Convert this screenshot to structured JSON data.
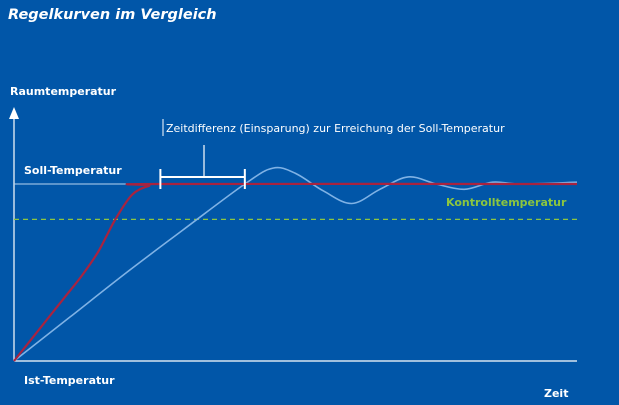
{
  "chart_data": {
    "type": "line",
    "title": "Regelkurven im Vergleich",
    "ylabel": "Raumtemperatur",
    "xlabel": "Zeit",
    "colors": {
      "background": "#0156a8",
      "axis": "#ffffff",
      "fast_curve": "#a9233f",
      "slow_curve": "#7fb2e5",
      "control_line": "#8cc63f",
      "setpoint_line": "#b8d4f0",
      "bracket": "#ffffff"
    },
    "levels": {
      "ist_label": "Ist-Temperatur",
      "soll_label": "Soll-Temperatur",
      "soll": 1.0,
      "kontroll_label": "Kontrolltemperatur",
      "kontroll": 0.8
    },
    "annotation": {
      "text": "Zeitdifferenz (Einsparung) zur Erreichung der Soll-Temperatur",
      "x_start": 0.26,
      "x_end": 0.41
    },
    "series": [
      {
        "points": [
          [
            0,
            0
          ],
          [
            0.03,
            0.12
          ],
          [
            0.06,
            0.24
          ],
          [
            0.09,
            0.36
          ],
          [
            0.12,
            0.48
          ],
          [
            0.15,
            0.62
          ],
          [
            0.18,
            0.8
          ],
          [
            0.21,
            0.94
          ],
          [
            0.24,
            0.99
          ],
          [
            0.26,
            1.0
          ],
          [
            1.0,
            1.0
          ]
        ]
      },
      {
        "points": [
          [
            0,
            0
          ],
          [
            0.1,
            0.25
          ],
          [
            0.2,
            0.5
          ],
          [
            0.3,
            0.74
          ],
          [
            0.41,
            1.0
          ],
          [
            0.46,
            1.09
          ],
          [
            0.5,
            1.06
          ],
          [
            0.55,
            0.96
          ],
          [
            0.6,
            0.89
          ],
          [
            0.65,
            0.97
          ],
          [
            0.7,
            1.04
          ],
          [
            0.75,
            1.0
          ],
          [
            0.8,
            0.97
          ],
          [
            0.85,
            1.01
          ],
          [
            0.9,
            1.0
          ],
          [
            1.0,
            1.01
          ]
        ]
      }
    ]
  }
}
